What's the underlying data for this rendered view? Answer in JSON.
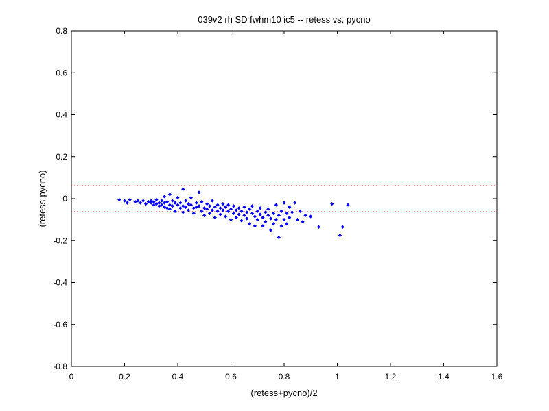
{
  "chart_data": {
    "type": "scatter",
    "title": "039v2 rh SD fwhm10 ic5 -- retess vs. pycno",
    "xlabel": "(retess+pycno)/2",
    "ylabel": "(retess-pycno)",
    "xlim": [
      0,
      1.6
    ],
    "ylim": [
      -0.8,
      0.8
    ],
    "xticks": [
      "0",
      "0.2",
      "0.4",
      "0.6",
      "0.8",
      "1",
      "1.2",
      "1.4",
      "1.6"
    ],
    "yticks": [
      "0.8",
      "0.6",
      "0.4",
      "0.2",
      "0",
      "-0.2",
      "-0.4",
      "-0.6",
      "-0.8"
    ],
    "grid": false,
    "colors": {
      "points": "#0000ff",
      "reference_lines": "#ff0000"
    },
    "reference_lines": [
      0.062,
      -0.062
    ],
    "series": [
      {
        "marker": "diamond",
        "points": [
          [
            0.18,
            -0.005
          ],
          [
            0.2,
            -0.01
          ],
          [
            0.21,
            -0.02
          ],
          [
            0.22,
            -0.005
          ],
          [
            0.24,
            -0.015
          ],
          [
            0.25,
            -0.01
          ],
          [
            0.26,
            -0.02
          ],
          [
            0.27,
            -0.01
          ],
          [
            0.28,
            -0.025
          ],
          [
            0.29,
            -0.015
          ],
          [
            0.3,
            -0.02
          ],
          [
            0.3,
            -0.01
          ],
          [
            0.31,
            -0.03
          ],
          [
            0.31,
            -0.015
          ],
          [
            0.32,
            -0.005
          ],
          [
            0.32,
            -0.025
          ],
          [
            0.33,
            -0.035
          ],
          [
            0.33,
            -0.02
          ],
          [
            0.34,
            -0.01
          ],
          [
            0.34,
            -0.03
          ],
          [
            0.35,
            0.01
          ],
          [
            0.35,
            -0.04
          ],
          [
            0.35,
            -0.02
          ],
          [
            0.36,
            -0.015
          ],
          [
            0.36,
            -0.045
          ],
          [
            0.37,
            0.02
          ],
          [
            0.37,
            -0.03
          ],
          [
            0.37,
            -0.05
          ],
          [
            0.38,
            -0.01
          ],
          [
            0.38,
            -0.035
          ],
          [
            0.39,
            -0.02
          ],
          [
            0.39,
            -0.06
          ],
          [
            0.4,
            -0.03
          ],
          [
            0.4,
            0.005
          ],
          [
            0.41,
            -0.045
          ],
          [
            0.41,
            -0.02
          ],
          [
            0.42,
            0.045
          ],
          [
            0.42,
            -0.035
          ],
          [
            0.42,
            -0.065
          ],
          [
            0.43,
            -0.01
          ],
          [
            0.43,
            -0.04
          ],
          [
            0.44,
            -0.025
          ],
          [
            0.44,
            -0.055
          ],
          [
            0.45,
            -0.03
          ],
          [
            0.45,
            0.005
          ],
          [
            0.46,
            -0.045
          ],
          [
            0.46,
            -0.07
          ],
          [
            0.47,
            -0.02
          ],
          [
            0.47,
            -0.04
          ],
          [
            0.48,
            0.03
          ],
          [
            0.48,
            -0.035
          ],
          [
            0.49,
            -0.06
          ],
          [
            0.49,
            -0.015
          ],
          [
            0.5,
            -0.045
          ],
          [
            0.5,
            -0.08
          ],
          [
            0.51,
            -0.025
          ],
          [
            0.51,
            -0.05
          ],
          [
            0.52,
            -0.035
          ],
          [
            0.52,
            -0.07
          ],
          [
            0.53,
            -0.01
          ],
          [
            0.53,
            -0.055
          ],
          [
            0.54,
            -0.04
          ],
          [
            0.54,
            -0.09
          ],
          [
            0.55,
            -0.03
          ],
          [
            0.55,
            -0.06
          ],
          [
            0.56,
            -0.045
          ],
          [
            0.56,
            -0.075
          ],
          [
            0.57,
            -0.025
          ],
          [
            0.57,
            -0.055
          ],
          [
            0.58,
            -0.04
          ],
          [
            0.58,
            -0.085
          ],
          [
            0.59,
            -0.06
          ],
          [
            0.59,
            -0.03
          ],
          [
            0.6,
            -0.05
          ],
          [
            0.6,
            -0.1
          ],
          [
            0.61,
            -0.035
          ],
          [
            0.61,
            -0.07
          ],
          [
            0.62,
            -0.055
          ],
          [
            0.62,
            -0.09
          ],
          [
            0.63,
            -0.045
          ],
          [
            0.63,
            -0.075
          ],
          [
            0.64,
            -0.06
          ],
          [
            0.64,
            -0.105
          ],
          [
            0.65,
            -0.04
          ],
          [
            0.65,
            -0.08
          ],
          [
            0.66,
            -0.065
          ],
          [
            0.66,
            -0.095
          ],
          [
            0.67,
            -0.05
          ],
          [
            0.67,
            -0.12
          ],
          [
            0.68,
            -0.07
          ],
          [
            0.68,
            -0.035
          ],
          [
            0.69,
            -0.085
          ],
          [
            0.69,
            -0.13
          ],
          [
            0.7,
            -0.06
          ],
          [
            0.7,
            -0.1
          ],
          [
            0.71,
            -0.075
          ],
          [
            0.71,
            -0.045
          ],
          [
            0.72,
            -0.09
          ],
          [
            0.72,
            -0.13
          ],
          [
            0.73,
            -0.065
          ],
          [
            0.73,
            -0.11
          ],
          [
            0.74,
            -0.08
          ],
          [
            0.74,
            -0.05
          ],
          [
            0.75,
            -0.095
          ],
          [
            0.75,
            -0.15
          ],
          [
            0.76,
            -0.07
          ],
          [
            0.76,
            -0.12
          ],
          [
            0.77,
            -0.03
          ],
          [
            0.77,
            -0.1
          ],
          [
            0.78,
            -0.185
          ],
          [
            0.78,
            -0.08
          ],
          [
            0.79,
            -0.06
          ],
          [
            0.79,
            -0.13
          ],
          [
            0.8,
            -0.1
          ],
          [
            0.8,
            -0.02
          ],
          [
            0.81,
            -0.07
          ],
          [
            0.81,
            -0.12
          ],
          [
            0.82,
            -0.09
          ],
          [
            0.82,
            -0.04
          ],
          [
            0.83,
            -0.065
          ],
          [
            0.84,
            -0.02
          ],
          [
            0.85,
            -0.1
          ],
          [
            0.86,
            -0.06
          ],
          [
            0.87,
            -0.11
          ],
          [
            0.88,
            -0.08
          ],
          [
            0.9,
            -0.085
          ],
          [
            0.93,
            -0.135
          ],
          [
            0.98,
            -0.025
          ],
          [
            1.01,
            -0.175
          ],
          [
            1.02,
            -0.135
          ],
          [
            1.04,
            -0.03
          ]
        ]
      }
    ]
  }
}
